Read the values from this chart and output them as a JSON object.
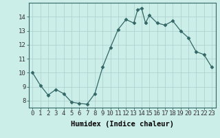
{
  "x": [
    0,
    1,
    2,
    3,
    4,
    5,
    6,
    7,
    8,
    9,
    10,
    11,
    12,
    13,
    13.5,
    14,
    14.5,
    15,
    16,
    17,
    18,
    19,
    20,
    21,
    22,
    23
  ],
  "y": [
    10.0,
    9.1,
    8.4,
    8.8,
    8.5,
    7.9,
    7.8,
    7.75,
    8.5,
    10.4,
    11.8,
    13.1,
    13.8,
    13.55,
    14.5,
    14.6,
    13.55,
    14.1,
    13.55,
    13.4,
    13.7,
    13.0,
    12.5,
    11.5,
    11.3,
    10.4
  ],
  "line_color": "#336666",
  "marker": "D",
  "marker_size": 2.5,
  "bg_color": "#cceee8",
  "grid_color": "#aacccc",
  "xlabel": "Humidex (Indice chaleur)",
  "xlim": [
    -0.5,
    23.5
  ],
  "ylim": [
    7.5,
    15.0
  ],
  "xticks": [
    0,
    1,
    2,
    3,
    4,
    5,
    6,
    7,
    8,
    9,
    10,
    11,
    12,
    13,
    14,
    15,
    16,
    17,
    18,
    19,
    20,
    21,
    22,
    23
  ],
  "yticks": [
    8,
    9,
    10,
    11,
    12,
    13,
    14
  ],
  "xlabel_fontsize": 7.5,
  "tick_fontsize": 6.5
}
